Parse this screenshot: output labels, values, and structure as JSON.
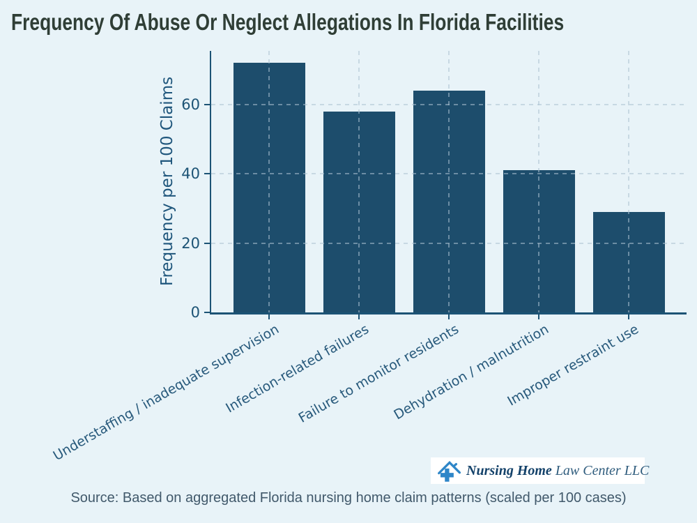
{
  "title": "Frequency Of Abuse Or Neglect Allegations In Florida Facilities",
  "chart_data": {
    "type": "bar",
    "title": "Frequency Of Abuse Or Neglect Allegations In Florida Facilities",
    "categories": [
      "Understaffing / inadequate supervision",
      "Infection-related failures",
      "Failure to monitor residents",
      "Dehydration / malnutrition",
      "Improper restraint use"
    ],
    "values": [
      72,
      58,
      64,
      41,
      29
    ],
    "xlabel": "",
    "ylabel": "Frequency per 100 Claims",
    "yticks": [
      0,
      20,
      40,
      60
    ],
    "ylim": [
      0,
      75.5
    ],
    "grid": "dashed, horizontal at yticks and vertical at bar centers, drawn over bars",
    "legend": "none",
    "colors": {
      "bar": "#1d4d6c",
      "axis": "#1c5375",
      "tick_label": "#1c5375",
      "category_label": "#27597b",
      "background": "#e8f3f8",
      "title_text": "#2f3e36"
    }
  },
  "branding": {
    "logo_icon": "house-cross-icon",
    "logo_text_bold": "Nursing Home",
    "logo_text_regular": "Law Center LLC",
    "logo_blue": "#2e86c8",
    "logo_background": "#ffffff"
  },
  "source_note": "Source: Based on aggregated Florida nursing home claim patterns (scaled per 100 cases)"
}
